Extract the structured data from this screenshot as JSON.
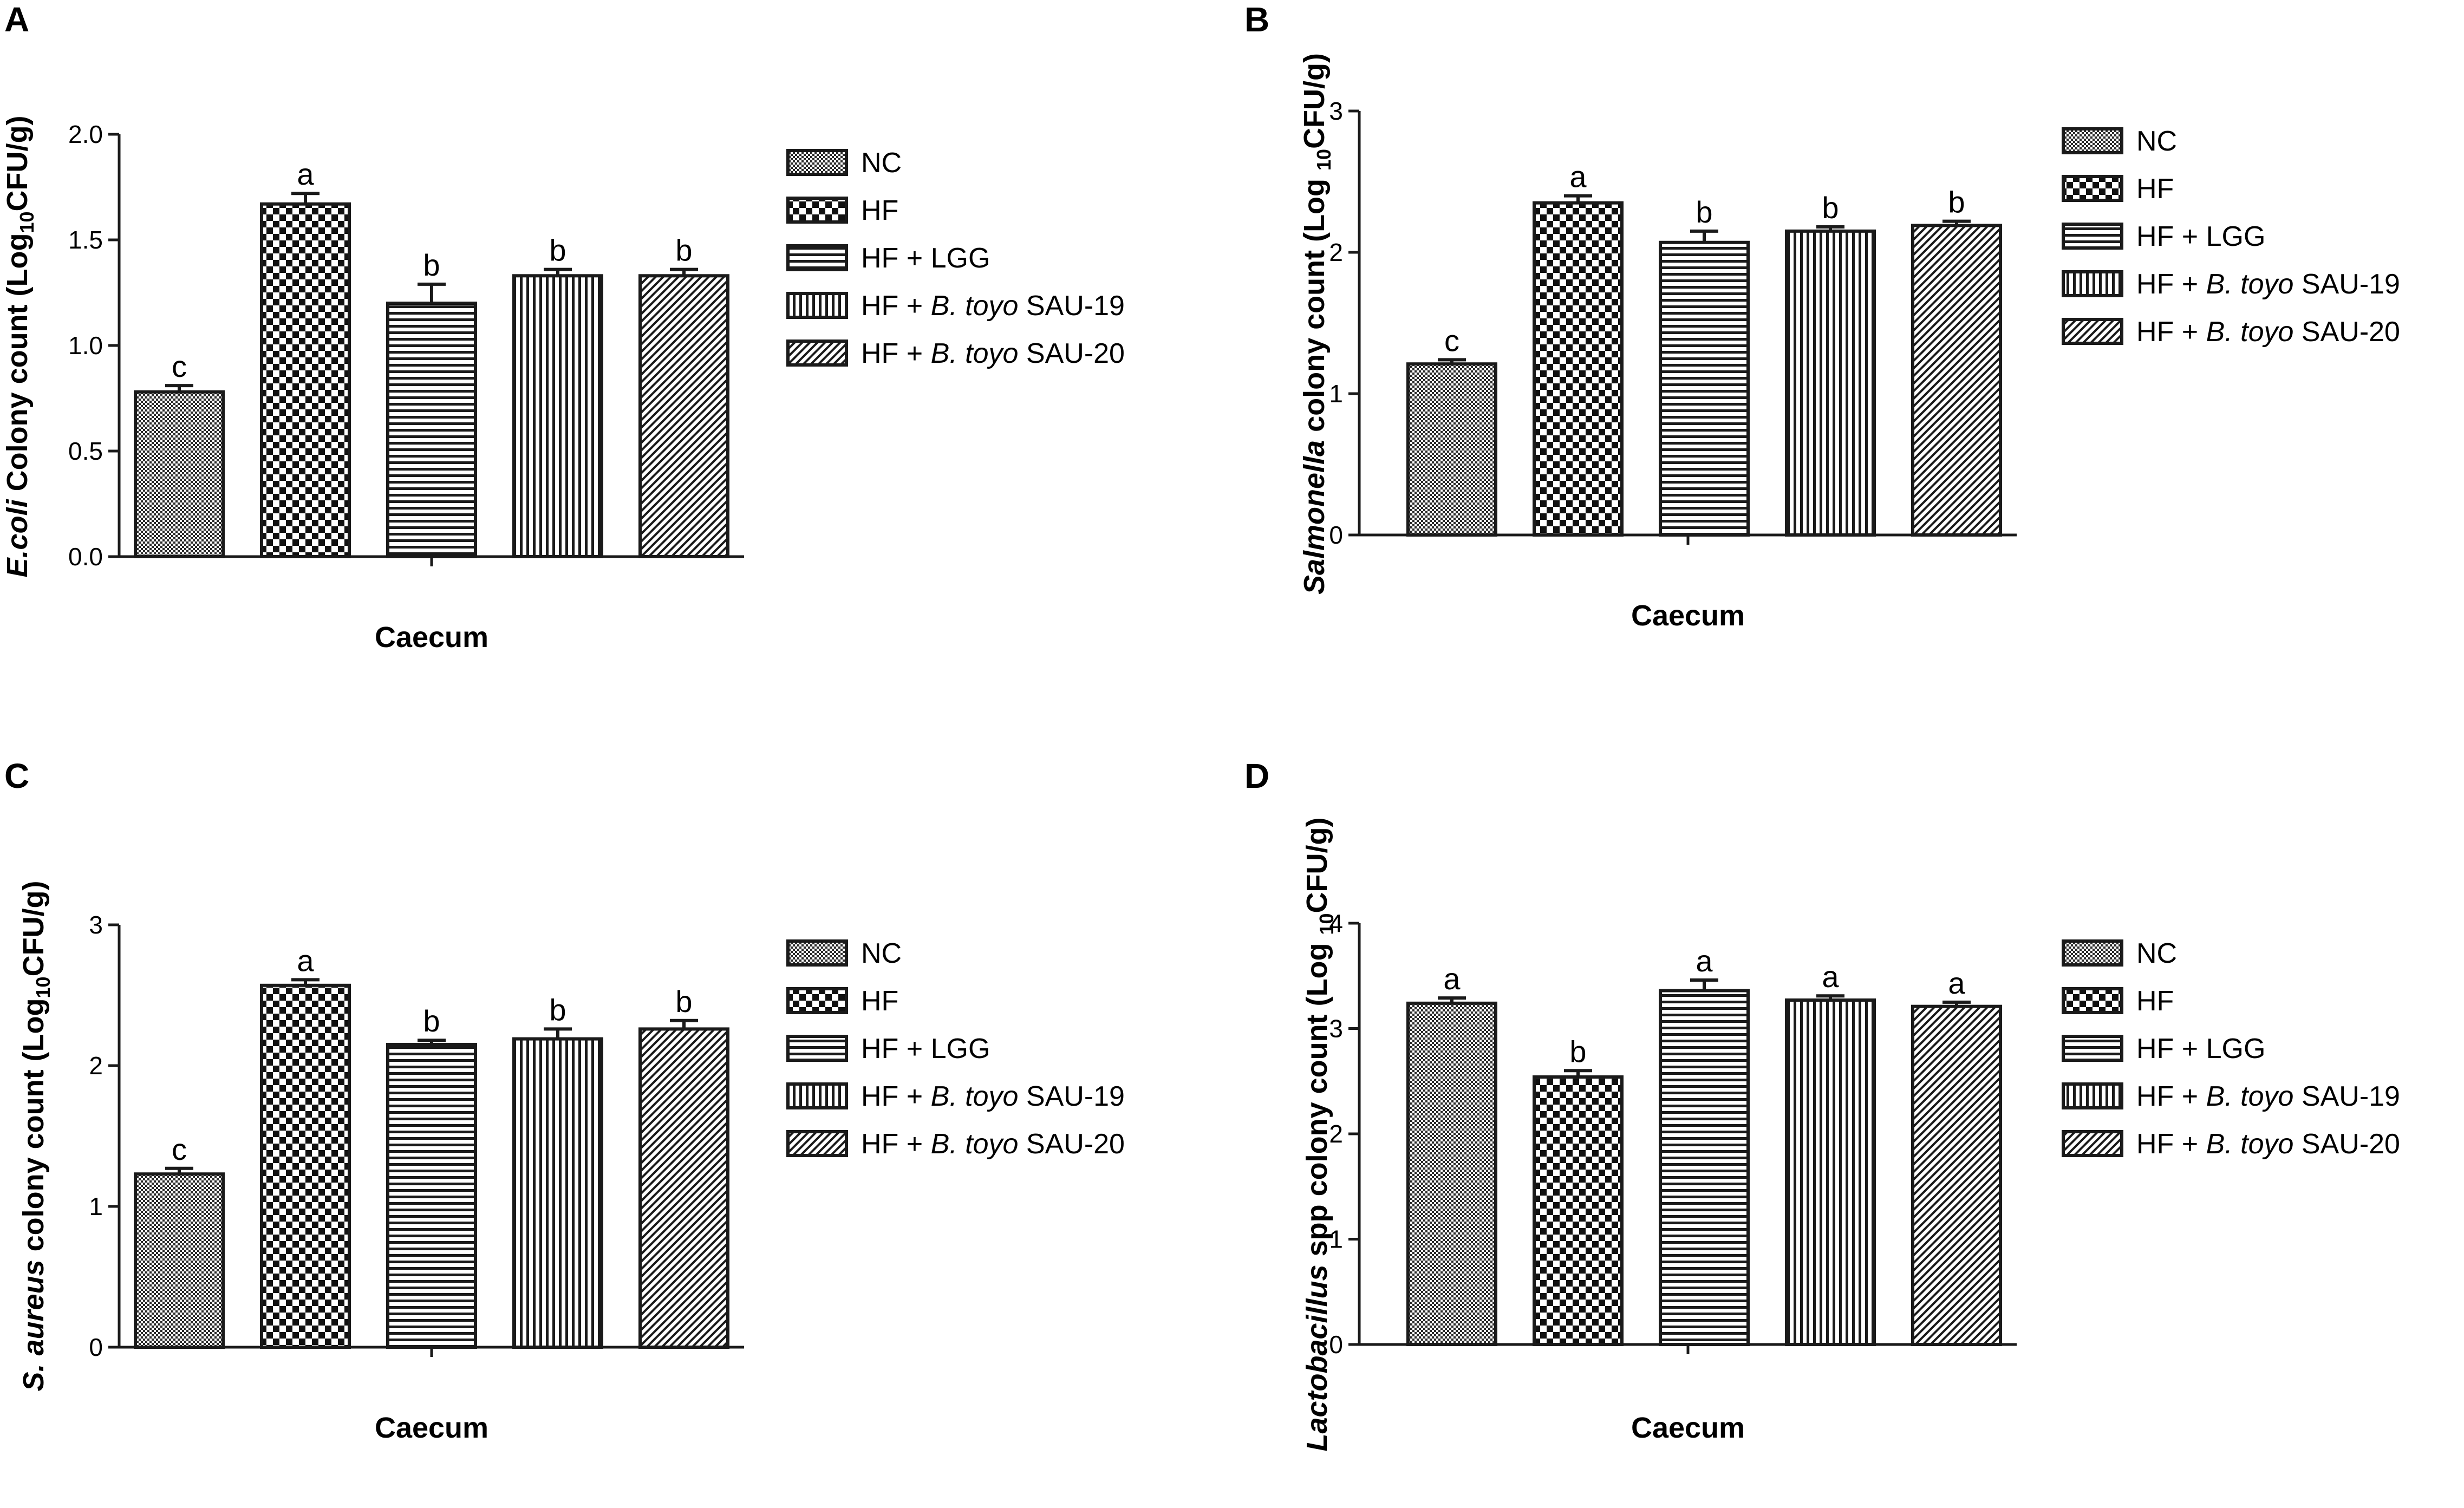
{
  "legend": {
    "entries": [
      {
        "key": "NC",
        "parts": [
          {
            "t": "NC",
            "i": false
          }
        ]
      },
      {
        "key": "HF",
        "parts": [
          {
            "t": "HF",
            "i": false
          }
        ]
      },
      {
        "key": "HF + LGG",
        "parts": [
          {
            "t": "HF + LGG",
            "i": false
          }
        ]
      },
      {
        "key": "HF + B. toyo SAU-19",
        "parts": [
          {
            "t": "HF + ",
            "i": false
          },
          {
            "t": "B. toyo",
            "i": true
          },
          {
            "t": " SAU-19",
            "i": false
          }
        ]
      },
      {
        "key": "HF + B. toyo SAU-20",
        "parts": [
          {
            "t": "HF + ",
            "i": false
          },
          {
            "t": "B. toyo",
            "i": true
          },
          {
            "t": " SAU-20",
            "i": false
          }
        ]
      }
    ]
  },
  "colors": {
    "ink": "#1a1a1a",
    "background": "#ffffff"
  },
  "chart_data": [
    {
      "panel": "A",
      "type": "bar",
      "xlabel": "Caecum",
      "ylabel": {
        "italic": "E.coli",
        "text": " Colony count (Log",
        "sub": "10",
        "suffix": "CFU/g)"
      },
      "ylim": [
        0,
        2.0
      ],
      "yticks": [
        "0.0",
        "0.5",
        "1.0",
        "1.5",
        "2.0"
      ],
      "categories": [
        "NC",
        "HF",
        "HF + LGG",
        "HF + B. toyo SAU-19",
        "HF + B. toyo SAU-20"
      ],
      "values": [
        0.78,
        1.67,
        1.2,
        1.33,
        1.33
      ],
      "errors": [
        0.03,
        0.05,
        0.09,
        0.03,
        0.03
      ],
      "letters": [
        "c",
        "a",
        "b",
        "b",
        "b"
      ]
    },
    {
      "panel": "B",
      "type": "bar",
      "xlabel": "Caecum",
      "ylabel": {
        "italic": "Salmonella",
        "text": " colony count (Log ",
        "sub": "10",
        "suffix": "CFU/g)"
      },
      "ylim": [
        0,
        3
      ],
      "yticks": [
        "0",
        "1",
        "2",
        "3"
      ],
      "categories": [
        "NC",
        "HF",
        "HF + LGG",
        "HF + B. toyo SAU-19",
        "HF + B. toyo SAU-20"
      ],
      "values": [
        1.21,
        2.35,
        2.07,
        2.15,
        2.19
      ],
      "errors": [
        0.03,
        0.05,
        0.08,
        0.03,
        0.03
      ],
      "letters": [
        "c",
        "a",
        "b",
        "b",
        "b"
      ]
    },
    {
      "panel": "C",
      "type": "bar",
      "xlabel": "Caecum",
      "ylabel": {
        "italic": "S. aureus",
        "text": " colony count (Log",
        "sub": "10",
        "suffix": "CFU/g)"
      },
      "ylim": [
        0,
        3
      ],
      "yticks": [
        "0",
        "1",
        "2",
        "3"
      ],
      "categories": [
        "NC",
        "HF",
        "HF + LGG",
        "HF + B. toyo SAU-19",
        "HF + B. toyo SAU-20"
      ],
      "values": [
        1.23,
        2.57,
        2.15,
        2.19,
        2.26
      ],
      "errors": [
        0.04,
        0.04,
        0.03,
        0.07,
        0.06
      ],
      "letters": [
        "c",
        "a",
        "b",
        "b",
        "b"
      ]
    },
    {
      "panel": "D",
      "type": "bar",
      "xlabel": "Caecum",
      "ylabel": {
        "italic": "Lactobacillus",
        "text": " spp colony count (Log ",
        "sub": "10",
        "suffix": "CFU/g)"
      },
      "ylim": [
        0,
        4
      ],
      "yticks": [
        "0",
        "1",
        "2",
        "3",
        "4"
      ],
      "categories": [
        "NC",
        "HF",
        "HF + LGG",
        "HF + B. toyo SAU-19",
        "HF + B. toyo SAU-20"
      ],
      "values": [
        3.24,
        2.54,
        3.36,
        3.27,
        3.21
      ],
      "errors": [
        0.05,
        0.06,
        0.1,
        0.04,
        0.04
      ],
      "letters": [
        "a",
        "b",
        "a",
        "a",
        "a"
      ]
    }
  ]
}
